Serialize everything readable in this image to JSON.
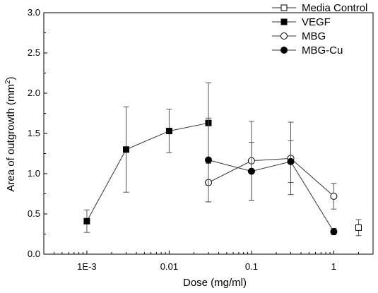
{
  "chart_data": {
    "type": "scatter",
    "xlabel": "Dose (mg/ml)",
    "ylabel_main": "Area of outgrowth (mm",
    "ylabel_sup": "2",
    "ylabel_close": ")",
    "x_scale": "log",
    "xlim": [
      0.0003,
      3.0
    ],
    "ylim": [
      0,
      3.0
    ],
    "xticks": [
      {
        "value": 0.001,
        "label": "1E-3"
      },
      {
        "value": 0.01,
        "label": "0.01"
      },
      {
        "value": 0.1,
        "label": "0.1"
      },
      {
        "value": 1,
        "label": "1"
      }
    ],
    "yticks": [
      {
        "value": 0.0,
        "label": "0.0"
      },
      {
        "value": 0.5,
        "label": "0.5"
      },
      {
        "value": 1.0,
        "label": "1.0"
      },
      {
        "value": 1.5,
        "label": "1.5"
      },
      {
        "value": 2.0,
        "label": "2.0"
      },
      {
        "value": 2.5,
        "label": "2.5"
      },
      {
        "value": 3.0,
        "label": "3.0"
      }
    ],
    "grid": false,
    "legend_position": "top-right",
    "series": [
      {
        "name": "Media Control",
        "marker": "open-square",
        "line": false,
        "points": [
          {
            "x": 2.0,
            "y": 0.33,
            "err": 0.1
          }
        ]
      },
      {
        "name": "VEGF",
        "marker": "filled-square",
        "line": true,
        "points": [
          {
            "x": 0.001,
            "y": 0.41,
            "err": 0.14
          },
          {
            "x": 0.003,
            "y": 1.3,
            "err": 0.53
          },
          {
            "x": 0.01,
            "y": 1.53,
            "err": 0.27
          },
          {
            "x": 0.03,
            "y": 1.63,
            "err": 0.5
          }
        ]
      },
      {
        "name": "MBG",
        "marker": "open-circle",
        "line": true,
        "points": [
          {
            "x": 0.03,
            "y": 0.89,
            "err": 0.24
          },
          {
            "x": 0.1,
            "y": 1.16,
            "err": 0.49
          },
          {
            "x": 0.3,
            "y": 1.19,
            "err": 0.45
          },
          {
            "x": 1.0,
            "y": 0.72,
            "err": 0.16
          }
        ]
      },
      {
        "name": "MBG-Cu",
        "marker": "filled-circle",
        "line": true,
        "points": [
          {
            "x": 0.03,
            "y": 1.17,
            "err": 0.52
          },
          {
            "x": 0.1,
            "y": 1.03,
            "err": 0.36
          },
          {
            "x": 0.3,
            "y": 1.15,
            "err": 0.26
          },
          {
            "x": 1.0,
            "y": 0.28,
            "err": 0.04
          }
        ]
      }
    ]
  }
}
